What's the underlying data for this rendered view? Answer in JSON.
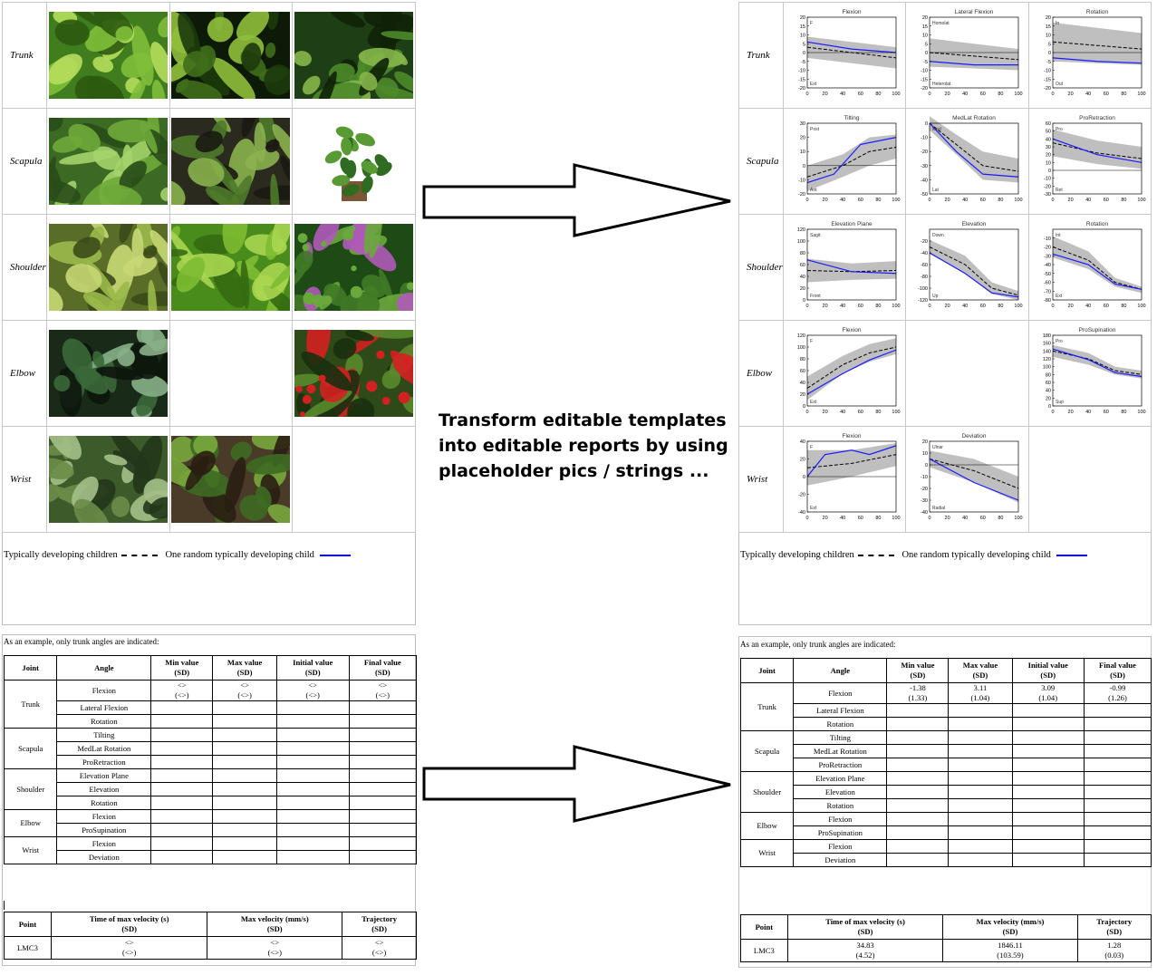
{
  "rows": [
    "Trunk",
    "Scapula",
    "Shoulder",
    "Elbow",
    "Wrist"
  ],
  "images": [
    [
      "plant-leaves",
      "plant-grass",
      "plant-fern"
    ],
    [
      "plant-fern-light",
      "plant-seedlings",
      "plant-pot"
    ],
    [
      "plant-succulent",
      "plant-basil",
      "plant-mimosa"
    ],
    [
      "plant-taro",
      "",
      "plant-red-flowers"
    ],
    [
      "plant-nettle",
      "plant-vine",
      ""
    ]
  ],
  "chart_titles": [
    [
      "Flexion",
      "Lateral Flexion",
      "Rotation"
    ],
    [
      "Tilting",
      "MedLat Rotation",
      "ProRetraction"
    ],
    [
      "Elevation Plane",
      "Elevation",
      "Rotation"
    ],
    [
      "Flexion",
      "",
      "ProSupination"
    ],
    [
      "Flexion",
      "Deviation",
      ""
    ]
  ],
  "legend": {
    "group": "Typically developing children",
    "child": "One random typically developing child"
  },
  "note": "As an example, only trunk angles are indicated:",
  "middle_text": [
    "Transform editable templates",
    "into editable reports by using",
    "placeholder pics / strings ..."
  ],
  "angles_table": {
    "headers": [
      "Joint",
      "Angle",
      "Min value\n(SD)",
      "Max value\n(SD)",
      "Initial value\n(SD)",
      "Final value\n(SD)"
    ],
    "rows": [
      {
        "joint": "Trunk",
        "angle": "Flexion"
      },
      {
        "joint": "",
        "angle": "Lateral Flexion"
      },
      {
        "joint": "",
        "angle": "Rotation"
      },
      {
        "joint": "Scapula",
        "angle": "Tilting"
      },
      {
        "joint": "",
        "angle": "MedLat Rotation"
      },
      {
        "joint": "",
        "angle": "ProRetraction"
      },
      {
        "joint": "Shoulder",
        "angle": "Elevation Plane"
      },
      {
        "joint": "",
        "angle": "Elevation"
      },
      {
        "joint": "",
        "angle": "Rotation"
      },
      {
        "joint": "Elbow",
        "angle": "Flexion"
      },
      {
        "joint": "",
        "angle": "ProSupination"
      },
      {
        "joint": "Wrist",
        "angle": "Flexion"
      },
      {
        "joint": "",
        "angle": "Deviation"
      }
    ],
    "template_values": [
      [
        "<<mTrFl_mean>>",
        "(<<mTrFl_std>>)"
      ],
      [
        "<<MTrFl_mean>>",
        "(<<MTrFl_std>>)"
      ],
      [
        "<<iTrFl_mean>>",
        "(<<iTrFl_std>>)"
      ],
      [
        "<<fTrFl_mean>>",
        "(<<fTrFl_std>>)"
      ]
    ],
    "report_values": [
      [
        "-1.38",
        "(1.33)"
      ],
      [
        "3.11",
        "(1.04)"
      ],
      [
        "3.09",
        "(1.04)"
      ],
      [
        "-0.99",
        "(1.26)"
      ]
    ]
  },
  "velocity_table": {
    "headers": [
      "Point",
      "Time of max velocity (s)\n(SD)",
      "Max velocity (mm/s)\n(SD)",
      "Trajectory\n(SD)"
    ],
    "point": "LMC3",
    "template_values": [
      [
        "<<time_max_vel_mean>>",
        "(<<time_max_vel_std>>)"
      ],
      [
        "<<max_vel_mean>>",
        "(<<max_vel_std>>)"
      ],
      [
        "<<traj_mean>>",
        "(<<traj_std>>)"
      ]
    ],
    "report_values": [
      [
        "34.83",
        "(4.52)"
      ],
      [
        "1846.11",
        "(103.59)"
      ],
      [
        "1.28",
        "(0.03)"
      ]
    ]
  },
  "chart_data": [
    {
      "type": "line",
      "title": "Flexion",
      "ylim": [
        -20,
        20
      ],
      "yticks": [
        20,
        15,
        10,
        5,
        0,
        -5,
        -10,
        -15,
        -20
      ],
      "xticks": [
        0,
        20,
        40,
        60,
        80,
        100
      ],
      "labels": [
        "F",
        "Ext"
      ],
      "mean": [
        [
          0,
          3
        ],
        [
          50,
          0
        ],
        [
          100,
          -3
        ]
      ],
      "sd": [
        [
          0,
          9,
          -3
        ],
        [
          50,
          6,
          -6
        ],
        [
          100,
          3,
          -9
        ]
      ],
      "child": [
        [
          0,
          6
        ],
        [
          50,
          2
        ],
        [
          100,
          0
        ]
      ]
    },
    {
      "type": "line",
      "title": "Lateral Flexion",
      "ylim": [
        -20,
        20
      ],
      "yticks": [
        20,
        15,
        10,
        5,
        0,
        -5,
        -10,
        -15,
        -20
      ],
      "xticks": [
        0,
        20,
        40,
        60,
        80,
        100
      ],
      "labels": [
        "Homolat",
        "Heterolat"
      ],
      "mean": [
        [
          0,
          0
        ],
        [
          50,
          -2
        ],
        [
          100,
          -4
        ]
      ],
      "sd": [
        [
          0,
          8,
          -8
        ],
        [
          50,
          5,
          -9
        ],
        [
          100,
          2,
          -10
        ]
      ],
      "child": [
        [
          0,
          -5
        ],
        [
          50,
          -7
        ],
        [
          100,
          -7
        ]
      ]
    },
    {
      "type": "line",
      "title": "Rotation",
      "ylim": [
        -20,
        20
      ],
      "yticks": [
        20,
        15,
        10,
        5,
        0,
        -5,
        -10,
        -15,
        -20
      ],
      "xticks": [
        0,
        20,
        40,
        60,
        80,
        100
      ],
      "labels": [
        "In",
        "Out"
      ],
      "mean": [
        [
          0,
          6
        ],
        [
          50,
          4
        ],
        [
          100,
          2
        ]
      ],
      "sd": [
        [
          0,
          17,
          -5
        ],
        [
          50,
          14,
          -6
        ],
        [
          100,
          11,
          -7
        ]
      ],
      "child": [
        [
          0,
          -3
        ],
        [
          50,
          -5
        ],
        [
          100,
          -6
        ]
      ]
    },
    {
      "type": "line",
      "title": "Tilting",
      "ylim": [
        -20,
        30
      ],
      "yticks": [
        30,
        20,
        10,
        0,
        -10,
        -20
      ],
      "xticks": [
        0,
        20,
        40,
        60,
        80,
        100
      ],
      "labels": [
        "Post",
        "Ant"
      ],
      "mean": [
        [
          0,
          -8
        ],
        [
          40,
          0
        ],
        [
          70,
          10
        ],
        [
          100,
          13
        ]
      ],
      "sd": [
        [
          0,
          0,
          -18
        ],
        [
          40,
          8,
          -8
        ],
        [
          70,
          20,
          0
        ],
        [
          100,
          22,
          5
        ]
      ],
      "child": [
        [
          0,
          -12
        ],
        [
          30,
          -6
        ],
        [
          60,
          15
        ],
        [
          100,
          20
        ]
      ]
    },
    {
      "type": "line",
      "title": "MedLat Rotation",
      "ylim": [
        -50,
        0
      ],
      "yticks": [
        0,
        -10,
        -20,
        -30,
        -40,
        -50
      ],
      "xticks": [
        0,
        20,
        40,
        60,
        80,
        100
      ],
      "labels": [
        "Med",
        "Lat"
      ],
      "mean": [
        [
          0,
          0
        ],
        [
          30,
          -15
        ],
        [
          60,
          -30
        ],
        [
          100,
          -34
        ]
      ],
      "sd": [
        [
          0,
          5,
          -5
        ],
        [
          30,
          -8,
          -22
        ],
        [
          60,
          -20,
          -40
        ],
        [
          100,
          -25,
          -42
        ]
      ],
      "child": [
        [
          0,
          0
        ],
        [
          30,
          -20
        ],
        [
          60,
          -36
        ],
        [
          100,
          -38
        ]
      ]
    },
    {
      "type": "line",
      "title": "ProRetraction",
      "ylim": [
        -30,
        60
      ],
      "yticks": [
        60,
        50,
        40,
        30,
        20,
        10,
        0,
        -10,
        -20,
        -30
      ],
      "xticks": [
        0,
        20,
        40,
        60,
        80,
        100
      ],
      "labels": [
        "Pro",
        "Ret"
      ],
      "mean": [
        [
          0,
          35
        ],
        [
          50,
          22
        ],
        [
          100,
          15
        ]
      ],
      "sd": [
        [
          0,
          52,
          18
        ],
        [
          50,
          38,
          8
        ],
        [
          100,
          30,
          2
        ]
      ],
      "child": [
        [
          0,
          40
        ],
        [
          50,
          20
        ],
        [
          100,
          10
        ]
      ]
    },
    {
      "type": "line",
      "title": "Elevation Plane",
      "ylim": [
        0,
        120
      ],
      "yticks": [
        120,
        100,
        80,
        60,
        40,
        20,
        0
      ],
      "xticks": [
        0,
        20,
        40,
        60,
        80,
        100
      ],
      "labels": [
        "Sagit",
        "Front"
      ],
      "mean": [
        [
          0,
          50
        ],
        [
          50,
          48
        ],
        [
          100,
          50
        ]
      ],
      "sd": [
        [
          0,
          70,
          30
        ],
        [
          50,
          62,
          34
        ],
        [
          100,
          66,
          36
        ]
      ],
      "child": [
        [
          0,
          68
        ],
        [
          50,
          48
        ],
        [
          100,
          45
        ]
      ]
    },
    {
      "type": "line",
      "title": "Elevation",
      "ylim": [
        -120,
        0
      ],
      "yticks": [
        -20,
        -40,
        -60,
        -80,
        -100,
        -120
      ],
      "xticks": [
        0,
        20,
        40,
        60,
        80,
        100
      ],
      "labels": [
        "Down",
        "Up"
      ],
      "mean": [
        [
          0,
          -30
        ],
        [
          40,
          -60
        ],
        [
          70,
          -100
        ],
        [
          100,
          -112
        ]
      ],
      "sd": [
        [
          0,
          -18,
          -42
        ],
        [
          40,
          -45,
          -75
        ],
        [
          70,
          -90,
          -110
        ],
        [
          100,
          -105,
          -120
        ]
      ],
      "child": [
        [
          0,
          -40
        ],
        [
          40,
          -75
        ],
        [
          70,
          -108
        ],
        [
          100,
          -115
        ]
      ]
    },
    {
      "type": "line",
      "title": "Rotation",
      "ylim": [
        -80,
        0
      ],
      "yticks": [
        -10,
        -20,
        -30,
        -40,
        -50,
        -60,
        -70,
        -80
      ],
      "xticks": [
        0,
        20,
        40,
        60,
        80,
        100
      ],
      "labels": [
        "Int",
        "Ext"
      ],
      "mean": [
        [
          0,
          -20
        ],
        [
          40,
          -35
        ],
        [
          70,
          -60
        ],
        [
          100,
          -68
        ]
      ],
      "sd": [
        [
          0,
          -8,
          -32
        ],
        [
          40,
          -25,
          -45
        ],
        [
          70,
          -55,
          -65
        ],
        [
          100,
          -65,
          -72
        ]
      ],
      "child": [
        [
          0,
          -28
        ],
        [
          40,
          -40
        ],
        [
          70,
          -62
        ],
        [
          100,
          -68
        ]
      ]
    },
    {
      "type": "line",
      "title": "Flexion",
      "ylim": [
        0,
        120
      ],
      "yticks": [
        120,
        100,
        80,
        60,
        40,
        20,
        0
      ],
      "xticks": [
        0,
        20,
        40,
        60,
        80,
        100
      ],
      "labels": [
        "F",
        "Ext"
      ],
      "mean": [
        [
          0,
          30
        ],
        [
          40,
          70
        ],
        [
          70,
          90
        ],
        [
          100,
          100
        ]
      ],
      "sd": [
        [
          0,
          50,
          10
        ],
        [
          40,
          85,
          55
        ],
        [
          70,
          105,
          75
        ],
        [
          100,
          115,
          88
        ]
      ],
      "child": [
        [
          0,
          20
        ],
        [
          40,
          55
        ],
        [
          70,
          78
        ],
        [
          100,
          95
        ]
      ]
    },
    null,
    {
      "type": "line",
      "title": "ProSupination",
      "ylim": [
        0,
        180
      ],
      "yticks": [
        180,
        160,
        140,
        120,
        100,
        80,
        60,
        40,
        20,
        0
      ],
      "xticks": [
        0,
        20,
        40,
        60,
        80,
        100
      ],
      "labels": [
        "Pro",
        "Sup"
      ],
      "mean": [
        [
          0,
          140
        ],
        [
          40,
          120
        ],
        [
          70,
          90
        ],
        [
          100,
          80
        ]
      ],
      "sd": [
        [
          0,
          155,
          125
        ],
        [
          40,
          135,
          105
        ],
        [
          70,
          100,
          80
        ],
        [
          100,
          90,
          70
        ]
      ],
      "child": [
        [
          0,
          145
        ],
        [
          40,
          118
        ],
        [
          70,
          85
        ],
        [
          100,
          75
        ]
      ]
    },
    {
      "type": "line",
      "title": "Flexion",
      "ylim": [
        -40,
        40
      ],
      "yticks": [
        40,
        20,
        0,
        -20,
        -40
      ],
      "xticks": [
        0,
        20,
        40,
        60,
        80,
        100
      ],
      "labels": [
        "F",
        "Ext"
      ],
      "mean": [
        [
          0,
          10
        ],
        [
          50,
          15
        ],
        [
          100,
          25
        ]
      ],
      "sd": [
        [
          0,
          30,
          -10
        ],
        [
          50,
          30,
          0
        ],
        [
          100,
          38,
          12
        ]
      ],
      "child": [
        [
          0,
          0
        ],
        [
          20,
          25
        ],
        [
          50,
          30
        ],
        [
          70,
          25
        ],
        [
          100,
          35
        ]
      ]
    },
    {
      "type": "line",
      "title": "Deviation",
      "ylim": [
        -40,
        20
      ],
      "yticks": [
        20,
        10,
        0,
        -10,
        -20,
        -30,
        -40
      ],
      "xticks": [
        0,
        20,
        40,
        60,
        80,
        100
      ],
      "labels": [
        "Ulnar",
        "Radial"
      ],
      "mean": [
        [
          0,
          5
        ],
        [
          50,
          -5
        ],
        [
          100,
          -20
        ]
      ],
      "sd": [
        [
          0,
          12,
          -2
        ],
        [
          50,
          5,
          -15
        ],
        [
          100,
          -10,
          -32
        ]
      ],
      "child": [
        [
          0,
          5
        ],
        [
          50,
          -15
        ],
        [
          100,
          -30
        ]
      ]
    },
    null
  ]
}
